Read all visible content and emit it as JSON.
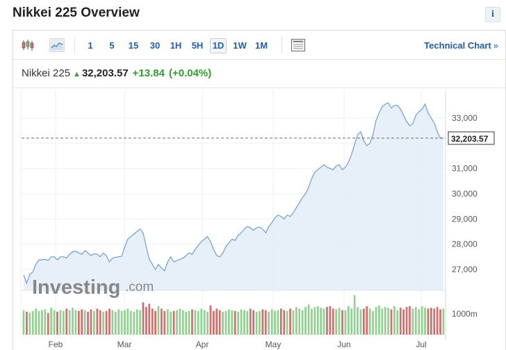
{
  "page": {
    "title": "Nikkei 225 Overview",
    "info_label": "i"
  },
  "toolbar": {
    "timeframes": [
      "1",
      "5",
      "15",
      "30",
      "1H",
      "5H",
      "1D",
      "1W",
      "1M"
    ],
    "active_timeframe": "1D",
    "technical_chart_label": "Technical Chart",
    "technical_chart_arrow": "»"
  },
  "quote": {
    "name": "Nikkei 225",
    "direction_icon": "▲",
    "price": "32,203.57",
    "change": "+13.84",
    "change_pct": "(+0.04%)",
    "colors": {
      "up": "#2e9e2e"
    }
  },
  "watermark": {
    "brand": "Investing",
    "suffix": ".com"
  },
  "chart_data": {
    "type": "area",
    "colors": {
      "line": "#6a9fd3",
      "fill": "#e3edf7",
      "vol_up": "#8fd18f",
      "vol_down": "#d96a6a"
    },
    "x_labels": [
      "Feb",
      "Mar",
      "Apr",
      "May",
      "Jun",
      "Jul"
    ],
    "y_ticks": [
      "27,000",
      "28,000",
      "29,000",
      "30,000",
      "31,000",
      "32,000",
      "33,000"
    ],
    "ylim": [
      26200,
      34100
    ],
    "last_price": 32203.57,
    "last_price_label": "32,203.57",
    "volume_label": "1000m",
    "prices": [
      26.78,
      26.45,
      26.8,
      26.9,
      27.2,
      27.38,
      27.38,
      27.4,
      27.35,
      27.5,
      27.5,
      27.38,
      27.5,
      27.5,
      27.45,
      27.6,
      27.7,
      27.72,
      27.65,
      27.6,
      27.75,
      27.65,
      27.55,
      27.62,
      27.6,
      27.5,
      27.65,
      27.55,
      27.3,
      27.45,
      27.48,
      27.5,
      27.52,
      27.9,
      28.2,
      28.3,
      28.4,
      28.5,
      28.6,
      28.45,
      27.9,
      27.4,
      27.2,
      27.0,
      27.2,
      27.05,
      26.95,
      27.3,
      27.5,
      27.3,
      27.35,
      27.4,
      27.45,
      27.55,
      27.65,
      27.6,
      27.8,
      27.95,
      28.1,
      28.2,
      28.3,
      28.1,
      27.8,
      27.55,
      27.5,
      27.65,
      27.9,
      28.05,
      28.2,
      28.15,
      28.35,
      28.45,
      28.6,
      28.7,
      28.65,
      28.55,
      28.65,
      28.68,
      28.6,
      28.45,
      28.7,
      28.85,
      29.05,
      29.15,
      29.1,
      29.0,
      29.15,
      29.1,
      29.25,
      29.45,
      29.65,
      29.85,
      30.0,
      30.25,
      30.6,
      30.85,
      30.95,
      31.05,
      31.15,
      31.05,
      31.0,
      30.95,
      31.1,
      31.15,
      30.95,
      31.05,
      31.25,
      31.55,
      31.95,
      32.35,
      32.45,
      32.1,
      31.9,
      32.0,
      32.35,
      32.9,
      33.2,
      33.45,
      33.55,
      33.6,
      33.4,
      33.5,
      33.5,
      33.35,
      33.1,
      32.85,
      32.7,
      32.78,
      33.1,
      33.25,
      33.35,
      33.55,
      33.2,
      33.0,
      32.8,
      32.45,
      32.2,
      32.2
    ],
    "volumes": [
      0.62,
      0.58,
      0.56,
      0.6,
      0.66,
      0.6,
      0.62,
      0.64,
      0.55,
      0.68,
      0.62,
      0.58,
      0.62,
      0.6,
      0.66,
      0.62,
      0.68,
      0.62,
      0.6,
      0.64,
      0.62,
      0.58,
      0.64,
      0.6,
      0.66,
      0.62,
      0.58,
      0.6,
      0.66,
      0.62,
      0.58,
      0.64,
      0.6,
      0.62,
      0.66,
      0.6,
      0.58,
      0.64,
      0.62,
      0.82,
      0.7,
      0.78,
      0.66,
      0.6,
      0.72,
      0.66,
      0.6,
      0.64,
      0.58,
      0.6,
      0.62,
      0.66,
      0.62,
      0.58,
      0.6,
      0.64,
      0.62,
      0.6,
      0.66,
      0.62,
      0.58,
      0.74,
      0.6,
      0.66,
      0.62,
      0.58,
      0.6,
      0.64,
      0.62,
      0.6,
      0.58,
      0.64,
      0.62,
      0.6,
      0.66,
      0.62,
      0.58,
      0.6,
      0.64,
      0.62,
      0.58,
      0.64,
      0.6,
      0.62,
      0.66,
      0.62,
      0.6,
      0.66,
      0.62,
      0.7,
      0.66,
      0.62,
      0.7,
      0.76,
      0.66,
      0.7,
      0.72,
      0.68,
      0.66,
      0.7,
      0.72,
      0.66,
      0.64,
      0.68,
      0.62,
      0.62,
      0.72,
      0.66,
      1.0,
      0.7,
      0.64,
      0.66,
      0.72,
      0.66,
      0.6,
      0.7,
      0.74,
      0.66,
      0.7,
      0.68,
      0.64,
      0.72,
      0.62,
      0.68,
      0.64,
      0.7,
      0.72,
      0.66,
      0.7,
      0.64,
      0.72,
      0.68,
      0.66,
      0.68,
      0.66,
      0.7,
      0.64,
      0.66
    ]
  }
}
